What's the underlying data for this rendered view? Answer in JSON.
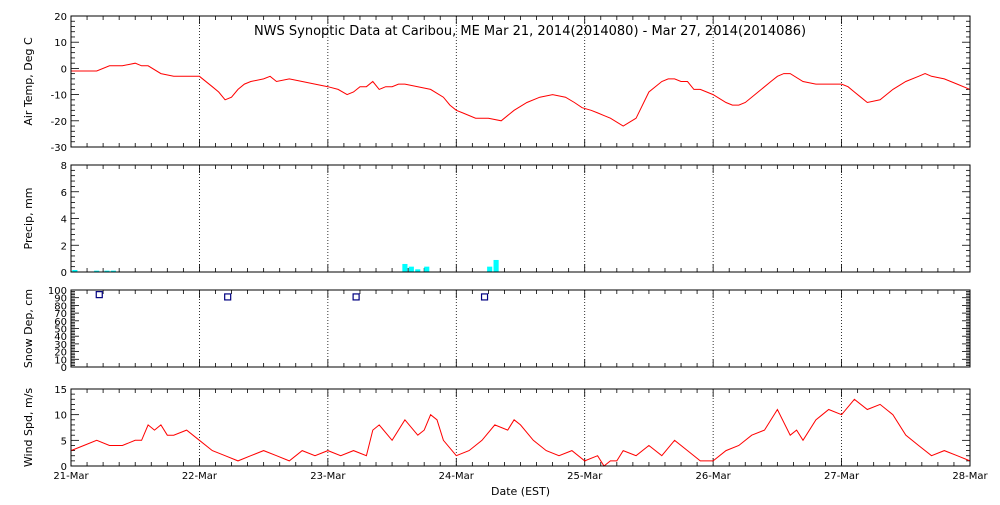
{
  "colors": {
    "background": "#ffffff",
    "axis": "#000000",
    "temperature_line": "#ff0000",
    "precip_bars": "#00ffff",
    "snow_markers": "#000080",
    "wind_line": "#ff0000"
  },
  "chart_data": {
    "title": "NWS Synoptic Data at Caribou, ME   Mar 21, 2014(2014080) - Mar 27, 2014(2014086)",
    "xlabel": "Date (EST)",
    "x_tick_labels": [
      "21-Mar",
      "22-Mar",
      "23-Mar",
      "24-Mar",
      "25-Mar",
      "26-Mar",
      "27-Mar",
      "28-Mar"
    ],
    "x_range_days": [
      0,
      7
    ],
    "x_start_date": "2014-03-21",
    "panels": [
      {
        "name": "air-temp",
        "type": "line",
        "ylabel": "Air Temp, Deg C",
        "ylim": [
          -30,
          20
        ],
        "yticks": [
          -30,
          -20,
          -10,
          0,
          10,
          20
        ],
        "grid": "dotted vertical at day boundaries",
        "x": [
          0,
          0.08,
          0.2,
          0.3,
          0.4,
          0.5,
          0.55,
          0.6,
          0.7,
          0.8,
          0.9,
          1.0,
          1.1,
          1.15,
          1.2,
          1.25,
          1.3,
          1.35,
          1.4,
          1.5,
          1.55,
          1.6,
          1.7,
          1.8,
          1.9,
          2.0,
          2.08,
          2.15,
          2.2,
          2.25,
          2.3,
          2.35,
          2.4,
          2.45,
          2.5,
          2.55,
          2.6,
          2.7,
          2.8,
          2.9,
          2.95,
          3.0,
          3.05,
          3.15,
          3.25,
          3.35,
          3.45,
          3.55,
          3.65,
          3.75,
          3.85,
          3.92,
          3.98,
          4.05,
          4.1,
          4.15,
          4.2,
          4.3,
          4.4,
          4.5,
          4.6,
          4.65,
          4.7,
          4.75,
          4.8,
          4.85,
          4.9,
          4.95,
          5.0,
          5.1,
          5.15,
          5.2,
          5.25,
          5.35,
          5.45,
          5.5,
          5.55,
          5.6,
          5.7,
          5.8,
          5.9,
          5.95,
          6.0,
          6.05,
          6.1,
          6.15,
          6.2,
          6.3,
          6.4,
          6.5,
          6.6,
          6.65,
          6.7,
          6.8,
          6.9,
          7.0
        ],
        "y": [
          -1,
          -1,
          -1,
          1,
          1,
          2,
          1,
          1,
          -2,
          -3,
          -3,
          -3,
          -7,
          -9,
          -12,
          -11,
          -8,
          -6,
          -5,
          -4,
          -3,
          -5,
          -4,
          -5,
          -6,
          -7,
          -8,
          -10,
          -9,
          -7,
          -7,
          -5,
          -8,
          -7,
          -7,
          -6,
          -6,
          -7,
          -8,
          -11,
          -14,
          -16,
          -17,
          -19,
          -19,
          -20,
          -16,
          -13,
          -11,
          -10,
          -11,
          -13,
          -15,
          -16,
          -17,
          -18,
          -19,
          -22,
          -19,
          -9,
          -5,
          -4,
          -4,
          -5,
          -5,
          -8,
          -8,
          -9,
          -10,
          -13,
          -14,
          -14,
          -13,
          -9,
          -5,
          -3,
          -2,
          -2,
          -5,
          -6,
          -6,
          -6,
          -6,
          -7,
          -9,
          -11,
          -13,
          -12,
          -8,
          -5,
          -3,
          -2,
          -3,
          -4,
          -6,
          -8
        ]
      },
      {
        "name": "precip",
        "type": "bar",
        "ylabel": "Precip, mm",
        "ylim": [
          0,
          8
        ],
        "yticks": [
          0,
          2,
          4,
          6,
          8
        ],
        "bar_width_days": 0.04,
        "x": [
          0.03,
          0.2,
          0.28,
          0.33,
          2.6,
          2.65,
          2.7,
          2.77,
          3.26,
          3.31
        ],
        "y": [
          0.15,
          0.1,
          0.1,
          0.1,
          0.6,
          0.4,
          0.2,
          0.4,
          0.4,
          0.9
        ]
      },
      {
        "name": "snow-depth",
        "type": "scatter",
        "ylabel": "Snow Dep, cm",
        "ylim": [
          0,
          100
        ],
        "yticks": [
          0,
          10,
          20,
          30,
          40,
          50,
          60,
          70,
          80,
          90,
          100
        ],
        "x": [
          0.22,
          1.22,
          2.22,
          3.22
        ],
        "y": [
          94,
          91,
          91,
          91
        ]
      },
      {
        "name": "wind-speed",
        "type": "line",
        "ylabel": "Wind Spd, m/s",
        "ylim": [
          0,
          15
        ],
        "yticks": [
          0,
          5,
          10,
          15
        ],
        "x": [
          0,
          0.1,
          0.2,
          0.3,
          0.4,
          0.5,
          0.55,
          0.6,
          0.65,
          0.7,
          0.75,
          0.8,
          0.9,
          1.0,
          1.1,
          1.2,
          1.3,
          1.4,
          1.5,
          1.6,
          1.7,
          1.8,
          1.9,
          2.0,
          2.1,
          2.2,
          2.3,
          2.35,
          2.4,
          2.5,
          2.6,
          2.7,
          2.75,
          2.8,
          2.85,
          2.9,
          3.0,
          3.1,
          3.2,
          3.3,
          3.4,
          3.45,
          3.5,
          3.6,
          3.7,
          3.8,
          3.9,
          4.0,
          4.1,
          4.15,
          4.2,
          4.25,
          4.3,
          4.4,
          4.5,
          4.6,
          4.7,
          4.8,
          4.9,
          5.0,
          5.1,
          5.2,
          5.3,
          5.4,
          5.5,
          5.6,
          5.65,
          5.7,
          5.8,
          5.85,
          5.9,
          6.0,
          6.1,
          6.2,
          6.3,
          6.4,
          6.5,
          6.6,
          6.7,
          6.8,
          6.9,
          7.0
        ],
        "y": [
          3,
          4,
          5,
          4,
          4,
          5,
          5,
          8,
          7,
          8,
          6,
          6,
          7,
          5,
          3,
          2,
          1,
          2,
          3,
          2,
          1,
          3,
          2,
          3,
          2,
          3,
          2,
          7,
          8,
          5,
          9,
          6,
          7,
          10,
          9,
          5,
          2,
          3,
          5,
          8,
          7,
          9,
          8,
          5,
          3,
          2,
          3,
          1,
          2,
          0,
          1,
          1,
          3,
          2,
          4,
          2,
          5,
          3,
          1,
          1,
          3,
          4,
          6,
          7,
          11,
          6,
          7,
          5,
          9,
          10,
          11,
          10,
          13,
          11,
          12,
          10,
          6,
          4,
          2,
          3,
          2,
          1
        ]
      }
    ]
  }
}
